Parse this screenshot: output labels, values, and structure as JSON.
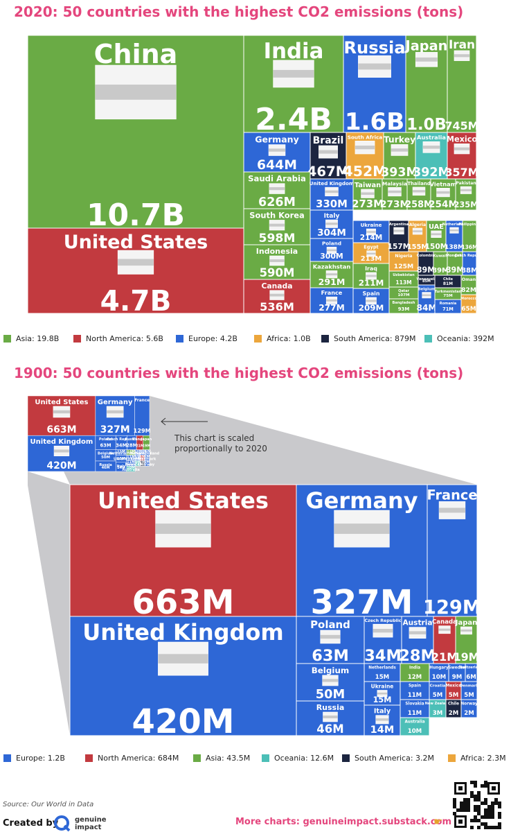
{
  "titles": {
    "top": "2020: 50 countries with the highest CO2 emissions (tons)",
    "bottom": "1900: 50 countries with the highest CO2 emissions (tons)"
  },
  "colors": {
    "Asia": "#6aab45",
    "North America": "#c23a3f",
    "Europe": "#2e67d6",
    "Africa": "#eca63c",
    "South America": "#1c2540",
    "Oceania": "#4cbfb7"
  },
  "legend_top": [
    {
      "label": "Asia: 19.8B",
      "color": "#6aab45"
    },
    {
      "label": "North America: 5.6B",
      "color": "#c23a3f"
    },
    {
      "label": "Europe: 4.2B",
      "color": "#2e67d6"
    },
    {
      "label": "Africa: 1.0B",
      "color": "#eca63c"
    },
    {
      "label": "South America: 879M",
      "color": "#1c2540"
    },
    {
      "label": "Oceania: 392M",
      "color": "#4cbfb7"
    }
  ],
  "legend_bottom": [
    {
      "label": "Europe: 1.2B",
      "color": "#2e67d6"
    },
    {
      "label": "North America: 684M",
      "color": "#c23a3f"
    },
    {
      "label": "Asia: 43.5M",
      "color": "#6aab45"
    },
    {
      "label": "Oceania: 12.6M",
      "color": "#4cbfb7"
    },
    {
      "label": "South America: 3.2M",
      "color": "#1c2540"
    },
    {
      "label": "Africa: 2.3M",
      "color": "#eca63c"
    }
  ],
  "annotation": "This chart is scaled proportionally to 2020",
  "arrow_icon": "arrow-left",
  "source": "Source: Our World in Data",
  "created_by": "Created by",
  "brand": [
    "genuine",
    "impact"
  ],
  "more_charts": "More charts: genuineimpact.substack.com",
  "more_charts_icon": "pointing-hand",
  "chart_data": [
    {
      "type": "treemap",
      "title": "2020: 50 countries with the highest CO2 emissions (tons)",
      "items": [
        {
          "name": "China",
          "value": "10.7B",
          "region": "Asia"
        },
        {
          "name": "United States",
          "value": "4.7B",
          "region": "North America"
        },
        {
          "name": "India",
          "value": "2.4B",
          "region": "Asia"
        },
        {
          "name": "Russia",
          "value": "1.6B",
          "region": "Europe"
        },
        {
          "name": "Japan",
          "value": "1.0B",
          "region": "Asia"
        },
        {
          "name": "Iran",
          "value": "745M",
          "region": "Asia"
        },
        {
          "name": "Germany",
          "value": "644M",
          "region": "Europe"
        },
        {
          "name": "Brazil",
          "value": "467M",
          "region": "South America"
        },
        {
          "name": "South Africa",
          "value": "452M",
          "region": "Africa"
        },
        {
          "name": "Turkey",
          "value": "393M",
          "region": "Asia"
        },
        {
          "name": "Australia",
          "value": "392M",
          "region": "Oceania"
        },
        {
          "name": "Mexico",
          "value": "357M",
          "region": "North America"
        },
        {
          "name": "Saudi Arabia",
          "value": "626M",
          "region": "Asia"
        },
        {
          "name": "United Kingdom",
          "value": "330M",
          "region": "Europe"
        },
        {
          "name": "Taiwan",
          "value": "273M",
          "region": "Asia"
        },
        {
          "name": "Malaysia",
          "value": "273M",
          "region": "Asia"
        },
        {
          "name": "Thailand",
          "value": "258M",
          "region": "Asia"
        },
        {
          "name": "Vietnam",
          "value": "254M",
          "region": "Asia"
        },
        {
          "name": "Pakistan",
          "value": "235M",
          "region": "Asia"
        },
        {
          "name": "South Korea",
          "value": "598M",
          "region": "Asia"
        },
        {
          "name": "Italy",
          "value": "304M",
          "region": "Europe"
        },
        {
          "name": "Poland",
          "value": "300M",
          "region": "Europe"
        },
        {
          "name": "Kazakhstan",
          "value": "291M",
          "region": "Asia"
        },
        {
          "name": "France",
          "value": "277M",
          "region": "Europe"
        },
        {
          "name": "Indonesia",
          "value": "590M",
          "region": "Asia"
        },
        {
          "name": "Canada",
          "value": "536M",
          "region": "North America"
        },
        {
          "name": "Ukraine",
          "value": "214M",
          "region": "Europe"
        },
        {
          "name": "Egypt",
          "value": "213M",
          "region": "Africa"
        },
        {
          "name": "Iraq",
          "value": "211M",
          "region": "Asia"
        },
        {
          "name": "Spain",
          "value": "209M",
          "region": "Europe"
        },
        {
          "name": "Argentina",
          "value": "157M",
          "region": "South America"
        },
        {
          "name": "Algeria",
          "value": "155M",
          "region": "Africa"
        },
        {
          "name": "UAE",
          "value": "150M",
          "region": "Asia"
        },
        {
          "name": "Netherlands",
          "value": "138M",
          "region": "Europe"
        },
        {
          "name": "Philippines",
          "value": "136M",
          "region": "Asia"
        },
        {
          "name": "Nigeria",
          "value": "125M",
          "region": "Africa"
        },
        {
          "name": "Uzbekistan",
          "value": "113M",
          "region": "Asia"
        },
        {
          "name": "Qatar",
          "value": "107M",
          "region": "Asia"
        },
        {
          "name": "Bangladesh",
          "value": "93M",
          "region": "Asia"
        },
        {
          "name": "Colombia",
          "value": "89M",
          "region": "South America"
        },
        {
          "name": "Kuwait",
          "value": "89M",
          "region": "Asia"
        },
        {
          "name": "Mongolia",
          "value": "89M",
          "region": "Asia"
        },
        {
          "name": "Czech Republic",
          "value": "88M",
          "region": "Europe"
        },
        {
          "name": "Venezuela",
          "value": "85M",
          "region": "South America"
        },
        {
          "name": "Chile",
          "value": "81M",
          "region": "South America"
        },
        {
          "name": "Belgium",
          "value": "84M",
          "region": "Europe"
        },
        {
          "name": "Turkmenistan",
          "value": "75M",
          "region": "Asia"
        },
        {
          "name": "Romania",
          "value": "71M",
          "region": "Europe"
        },
        {
          "name": "Oman",
          "value": "82M",
          "region": "Asia"
        },
        {
          "name": "Morocco",
          "value": "65M",
          "region": "Africa"
        }
      ]
    },
    {
      "type": "treemap",
      "title": "1900: 50 countries with the highest CO2 emissions (tons)",
      "items": [
        {
          "name": "United States",
          "value": "663M",
          "region": "North America"
        },
        {
          "name": "United Kingdom",
          "value": "420M",
          "region": "Europe"
        },
        {
          "name": "Germany",
          "value": "327M",
          "region": "Europe"
        },
        {
          "name": "France",
          "value": "129M",
          "region": "Europe"
        },
        {
          "name": "Poland",
          "value": "63M",
          "region": "Europe"
        },
        {
          "name": "Czech Republic",
          "value": "34M",
          "region": "Europe"
        },
        {
          "name": "Austria",
          "value": "28M",
          "region": "Europe"
        },
        {
          "name": "Canada",
          "value": "21M",
          "region": "North America"
        },
        {
          "name": "Japan",
          "value": "19M",
          "region": "Asia"
        },
        {
          "name": "Belgium",
          "value": "50M",
          "region": "Europe"
        },
        {
          "name": "Netherlands",
          "value": "15M",
          "region": "Europe"
        },
        {
          "name": "India",
          "value": "12M",
          "region": "Asia"
        },
        {
          "name": "Hungary",
          "value": "10M",
          "region": "Europe"
        },
        {
          "name": "Sweden",
          "value": "9M",
          "region": "Europe"
        },
        {
          "name": "Switzerland",
          "value": "6M",
          "region": "Europe"
        },
        {
          "name": "Russia",
          "value": "46M",
          "region": "Europe"
        },
        {
          "name": "Ukraine",
          "value": "15M",
          "region": "Europe"
        },
        {
          "name": "Spain",
          "value": "11M",
          "region": "Europe"
        },
        {
          "name": "Slovakia",
          "value": "11M",
          "region": "Europe"
        },
        {
          "name": "Italy",
          "value": "14M",
          "region": "Europe"
        },
        {
          "name": "Australia",
          "value": "10M",
          "region": "Oceania"
        },
        {
          "name": "Croatia",
          "value": "5M",
          "region": "Europe"
        },
        {
          "name": "Mexico",
          "value": "5M",
          "region": "North America"
        },
        {
          "name": "Denmark",
          "value": "5M",
          "region": "Europe"
        },
        {
          "name": "New Zealand",
          "value": "3M",
          "region": "Oceania"
        },
        {
          "name": "Chile",
          "value": "2M",
          "region": "South America"
        },
        {
          "name": "Norway",
          "value": "2M",
          "region": "Europe"
        }
      ]
    }
  ]
}
